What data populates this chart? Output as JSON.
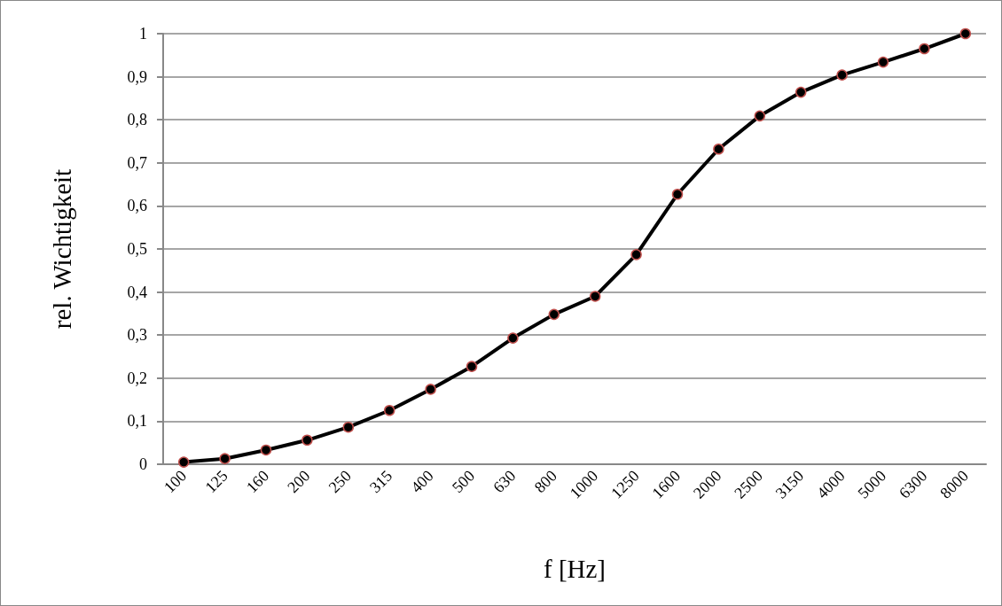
{
  "chart_data": {
    "type": "line",
    "xlabel": "f [Hz]",
    "ylabel": "rel. Wichtigkeit",
    "categories": [
      "100",
      "125",
      "160",
      "200",
      "250",
      "315",
      "400",
      "500",
      "630",
      "800",
      "1000",
      "1250",
      "1600",
      "2000",
      "2500",
      "3150",
      "4000",
      "5000",
      "6300",
      "8000"
    ],
    "series": [
      {
        "color": "#000000",
        "values": [
          0.005,
          0.013,
          0.033,
          0.056,
          0.086,
          0.125,
          0.174,
          0.227,
          0.293,
          0.348,
          0.39,
          0.487,
          0.627,
          0.732,
          0.809,
          0.864,
          0.904,
          0.934,
          0.965,
          1.0
        ]
      }
    ],
    "ylim": [
      0,
      1
    ],
    "yticks": [
      0,
      {
        "value": 0.1,
        "label": "0,1"
      },
      {
        "value": 0.2,
        "label": "0,2"
      },
      {
        "value": 0.3,
        "label": "0,3"
      },
      {
        "value": 0.4,
        "label": "0,4"
      },
      {
        "value": 0.5,
        "label": "0,5"
      },
      {
        "value": 0.6,
        "label": "0,6"
      },
      {
        "value": 0.7,
        "label": "0,7"
      },
      {
        "value": 0.8,
        "label": "0,8"
      },
      {
        "value": 0.9,
        "label": "0,9"
      },
      1
    ],
    "grid": "y",
    "marker": "circle",
    "line_style": "solid"
  }
}
